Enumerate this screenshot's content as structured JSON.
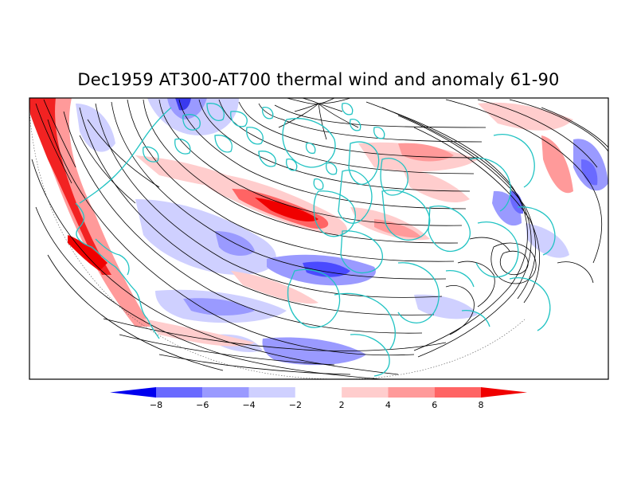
{
  "title": "Dec1959 AT300-AT700 thermal wind and anomaly 61-90",
  "colorbar": {
    "bins": [
      {
        "color": "#0000ee"
      },
      {
        "color": "#6a6aff"
      },
      {
        "color": "#9a9aff"
      },
      {
        "color": "#cfd0ff"
      },
      {
        "color": "#ffffff"
      },
      {
        "color": "#ffcdcd"
      },
      {
        "color": "#ff9a9a"
      },
      {
        "color": "#ff6464"
      },
      {
        "color": "#f00000"
      }
    ],
    "tick_labels": [
      "−8",
      "−6",
      "−4",
      "−2",
      "2",
      "4",
      "6",
      "8"
    ]
  },
  "colors": {
    "coastline": "#21c3c3",
    "streamline": "#000000",
    "frame": "#000000"
  }
}
